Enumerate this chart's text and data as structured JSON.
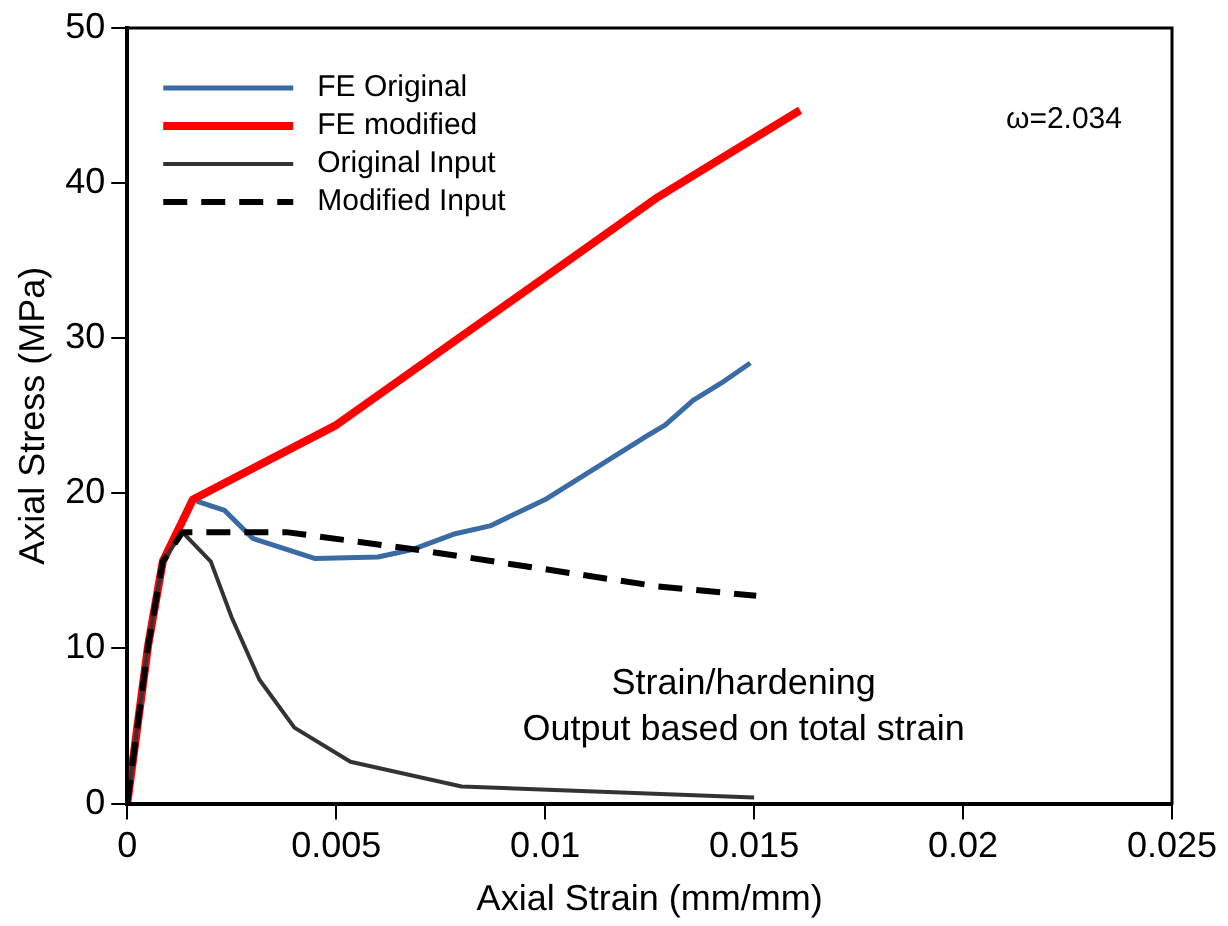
{
  "chart_data": {
    "type": "line",
    "xlabel": "Axial Strain (mm/mm)",
    "ylabel": "Axial Stress (MPa)",
    "xlim": [
      0,
      0.025
    ],
    "xticks": [
      0,
      0.005,
      0.01,
      0.015,
      0.02,
      0.025
    ],
    "ylim": [
      0,
      50
    ],
    "yticks": [
      0,
      10,
      20,
      30,
      40,
      50
    ],
    "grid": false,
    "legend": "top left",
    "marker": "none",
    "annotations": [
      "ω=2.034",
      "Strain/hardening\nOutput based on total strain"
    ],
    "series": [
      {
        "name": "FE Original",
        "color": "#3b6ba5",
        "x": [
          0.00166,
          0.00233,
          0.003,
          0.0045,
          0.006,
          0.00685,
          0.00785,
          0.00868,
          0.01,
          0.01237,
          0.01287,
          0.01354,
          0.01421,
          0.01491
        ],
        "values": [
          19.5,
          18.9,
          17.1,
          15.8,
          15.9,
          16.4,
          17.4,
          17.9,
          19.6,
          23.6,
          24.4,
          26.0,
          27.1,
          28.4
        ]
      },
      {
        "name": "FE modified",
        "color": "#ff0000",
        "x": [
          0,
          0.0005,
          0.00085,
          0.00157,
          0.005,
          0.0127,
          0.0161
        ],
        "values": [
          0,
          10.2,
          15.6,
          19.6,
          24.4,
          39.1,
          44.7
        ]
      },
      {
        "name": "Original Input",
        "color": "#333333",
        "x": [
          0,
          0.0005,
          0.00085,
          0.00132,
          0.002,
          0.0025,
          0.00316,
          0.004,
          0.00534,
          0.008,
          0.015
        ],
        "values": [
          0,
          10.2,
          15.6,
          17.5,
          15.6,
          12.0,
          8.0,
          4.9,
          2.7,
          1.1,
          0.4
        ]
      },
      {
        "name": "Modified Input",
        "color": "#000000",
        "line_style": "dashed",
        "x": [
          0,
          0.0005,
          0.00085,
          0.00132,
          0.0038,
          0.00685,
          0.0127,
          0.01505
        ],
        "values": [
          0,
          10.2,
          15.6,
          17.5,
          17.5,
          16.4,
          14.0,
          13.4
        ]
      }
    ]
  }
}
